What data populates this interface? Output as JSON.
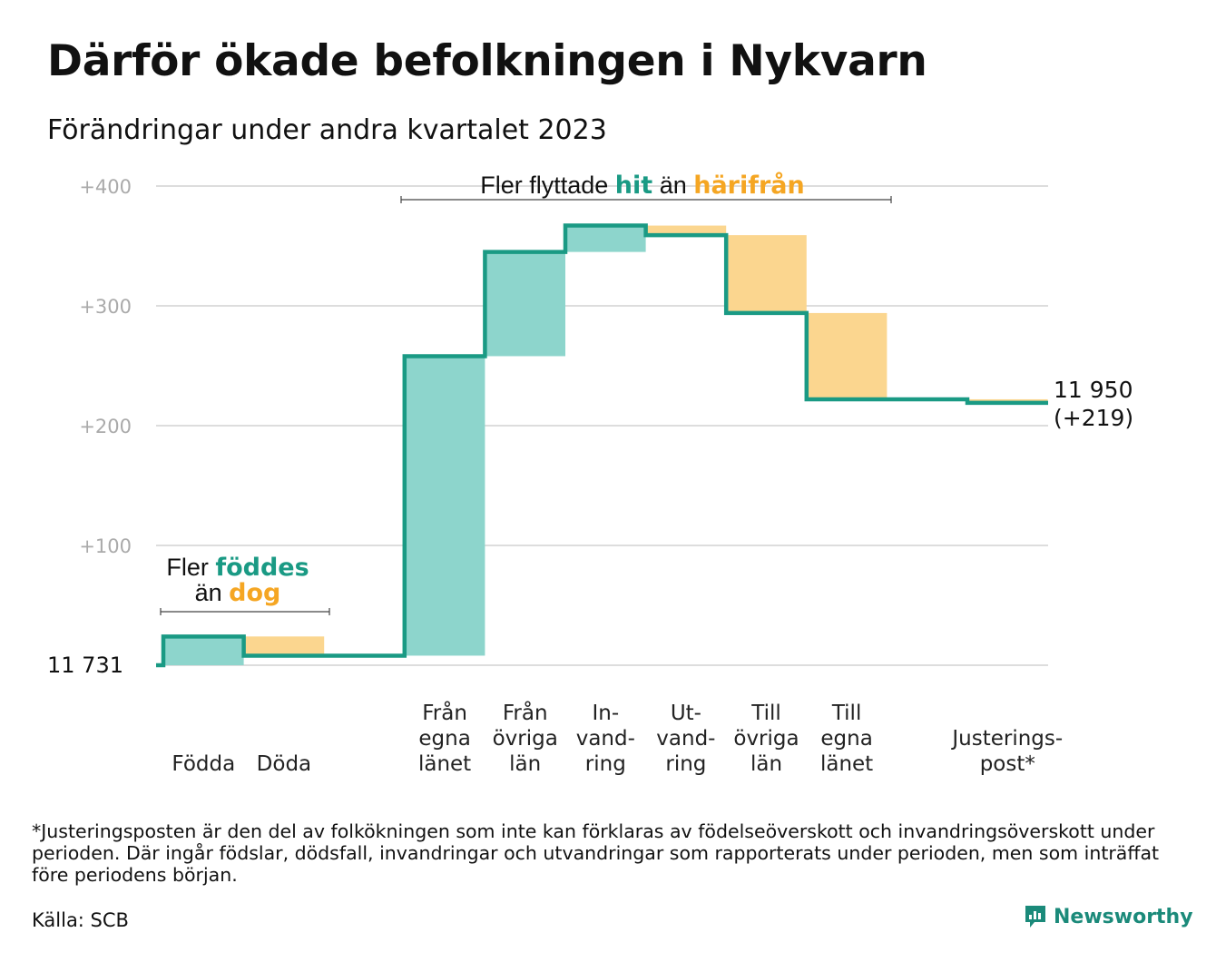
{
  "title": "Därför ökade befolkningen i Nykvarn",
  "subtitle": "Förändringar under andra kvartalet 2023",
  "chart_data": {
    "type": "waterfall",
    "start_label": "11   731",
    "end_label_line1": "11 950",
    "end_label_line2": "(+219)",
    "y_ticks": [
      "+400",
      "+300",
      "+200",
      "+100"
    ],
    "y_tick_values": [
      400,
      300,
      200,
      100
    ],
    "ylim": [
      0,
      400
    ],
    "categories": [
      {
        "label": [
          "Födda"
        ],
        "change": 24
      },
      {
        "label": [
          "Döda"
        ],
        "change": -16
      },
      {
        "label": [],
        "change": 0
      },
      {
        "label": [
          "Från",
          "egna",
          "länet"
        ],
        "change": 250
      },
      {
        "label": [
          "Från",
          "övriga",
          "län"
        ],
        "change": 87
      },
      {
        "label": [
          "In-",
          "vand-",
          "ring"
        ],
        "change": 22
      },
      {
        "label": [
          "Ut-",
          "vand-",
          "ring"
        ],
        "change": -8
      },
      {
        "label": [
          "Till",
          "övriga",
          "län"
        ],
        "change": -65
      },
      {
        "label": [
          "Till",
          "egna",
          "länet"
        ],
        "change": -72
      },
      {
        "label": [],
        "change": 0
      },
      {
        "label": [
          "Justerings-",
          "post*"
        ],
        "change": -3
      }
    ],
    "annotation_births": {
      "line1_prefix": "Fler ",
      "line1_highlight": "föddes",
      "line2_prefix": "än ",
      "line2_highlight": "dog"
    },
    "annotation_migration": {
      "prefix": "Fler flyttade ",
      "highlight1": "hit",
      "middle": " än ",
      "highlight2": "härifrån"
    },
    "colors": {
      "increase": "#8dd5cc",
      "decrease": "#fbd68f",
      "line": "#1a9a84",
      "highlight_green": "#1a9a84",
      "highlight_orange": "#f5a623",
      "grid": "#dddddd",
      "tick": "#aaaaaa"
    }
  },
  "footnote": "*Justeringsposten är den del av folkökningen som inte kan förklaras av födelseöverskott och invandringsöverskott under perioden. Där ingår födslar, dödsfall, invandringar och utvandringar som rapporterats under perioden, men som inträffat före periodens början.",
  "source": "Källa: SCB",
  "brand": "Newsworthy"
}
